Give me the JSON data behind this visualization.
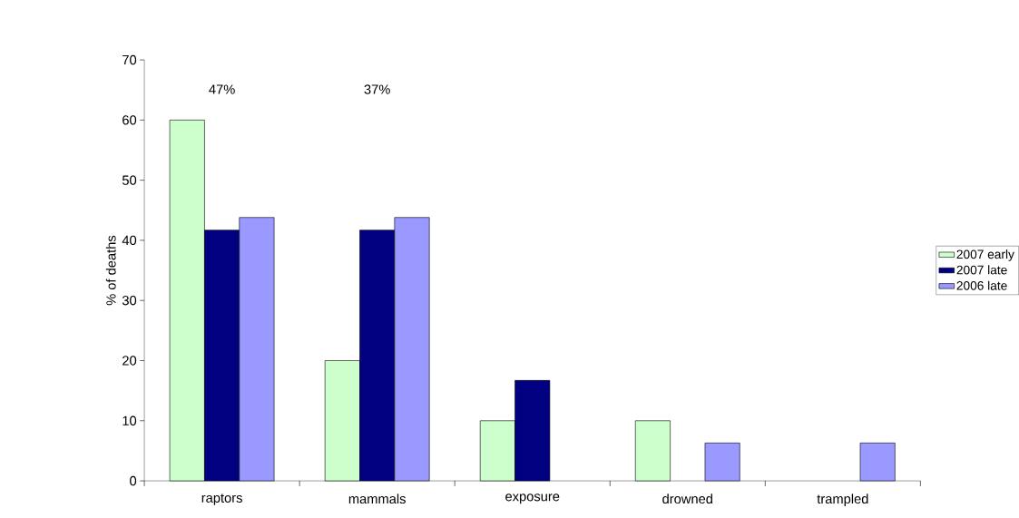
{
  "chart_data": {
    "type": "bar",
    "ylabel": "% of deaths",
    "categories": [
      "raptors",
      "mammals",
      "exposure",
      "drowned",
      "trampled"
    ],
    "series": [
      {
        "name": "2007 early",
        "color": "#ccffcc",
        "values": [
          60,
          20,
          10,
          10,
          null
        ]
      },
      {
        "name": "2007 late",
        "color": "#000080",
        "values": [
          41.7,
          41.7,
          16.7,
          null,
          null
        ]
      },
      {
        "name": "2006 late",
        "color": "#9999ff",
        "values": [
          43.8,
          43.8,
          null,
          6.3,
          6.3
        ]
      }
    ],
    "ylim": [
      0,
      70
    ],
    "yticks": [
      0,
      10,
      20,
      30,
      40,
      50,
      60,
      70
    ],
    "annotations": [
      "47%",
      "37%"
    ],
    "legend": "right",
    "grid": false
  }
}
